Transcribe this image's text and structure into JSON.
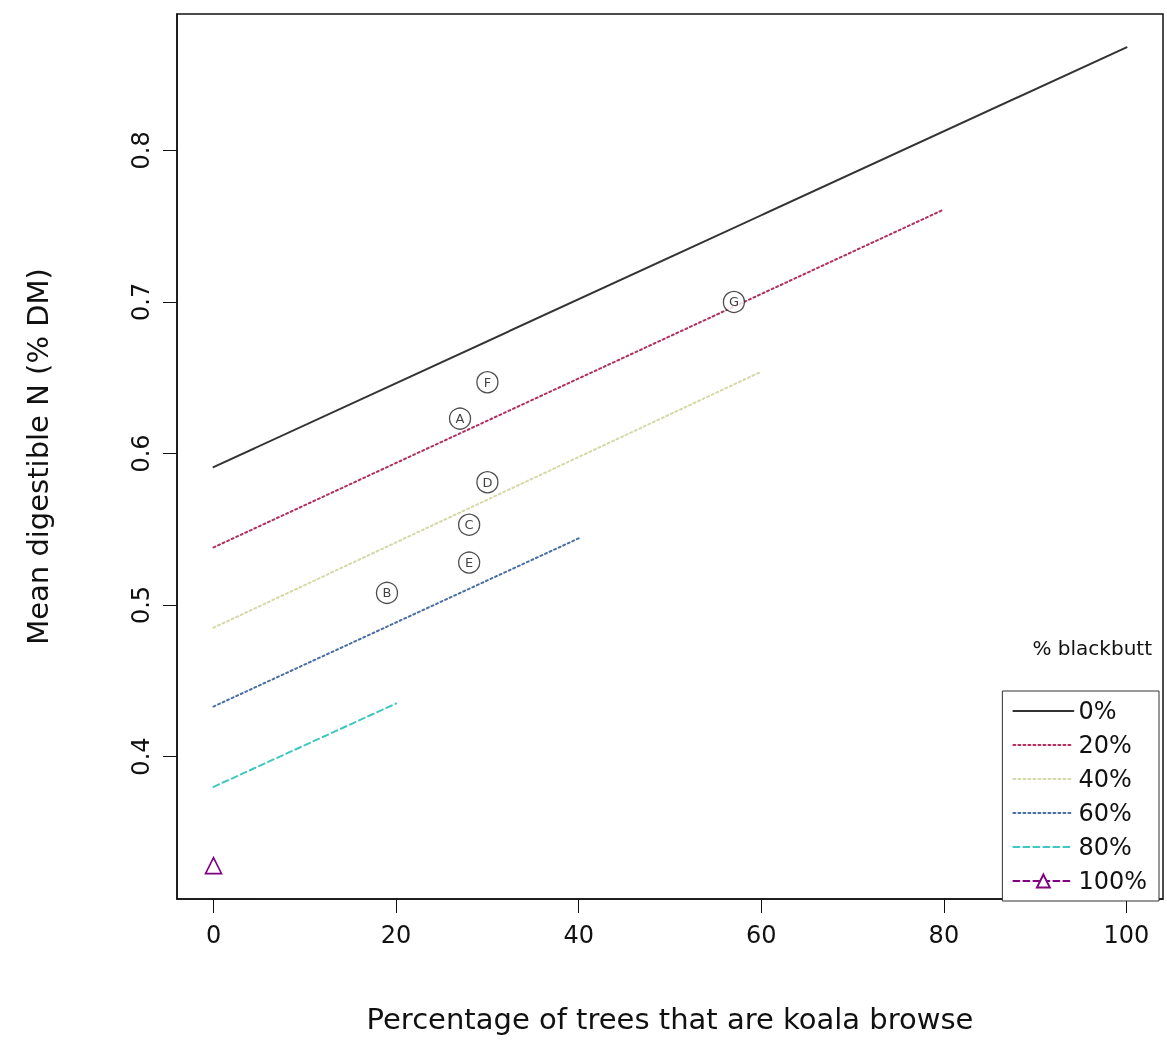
{
  "chart_data": {
    "type": "line",
    "xlabel": "Percentage of trees that are koala browse",
    "ylabel": "Mean digestible N (% DM)",
    "legend_title": "% blackbutt",
    "xlim": [
      -4,
      104
    ],
    "xticks": [
      0,
      20,
      40,
      60,
      80,
      100
    ],
    "ylim": [
      0.306,
      0.89
    ],
    "yticks": [
      0.4,
      0.5,
      0.6,
      0.7,
      0.8
    ],
    "grid": false,
    "legend": "bottom right",
    "marker": "none",
    "series": [
      {
        "name": "0%",
        "color": "#333333",
        "line_style": "solid",
        "x": [
          0,
          100
        ],
        "values": [
          0.591,
          0.868
        ]
      },
      {
        "name": "20%",
        "color": "#b03060",
        "line_style": "dotted",
        "x": [
          0,
          80
        ],
        "values": [
          0.538,
          0.761
        ]
      },
      {
        "name": "40%",
        "color": "#d6d8a8",
        "line_style": "dotted",
        "x": [
          0,
          60
        ],
        "values": [
          0.485,
          0.654
        ]
      },
      {
        "name": "60%",
        "color": "#4a6fa5",
        "line_style": "dotted",
        "x": [
          0,
          40
        ],
        "values": [
          0.433,
          0.544
        ]
      },
      {
        "name": "80%",
        "color": "#40c8c0",
        "line_style": "dashed",
        "x": [
          0,
          20
        ],
        "values": [
          0.38,
          0.435
        ]
      },
      {
        "name": "100%",
        "color": "#800080",
        "line_style": "dashed",
        "marker": "triangle",
        "x": [
          0
        ],
        "values": [
          0.328
        ]
      }
    ],
    "annotations": [
      {
        "text": "A",
        "x": 27,
        "y": 0.623
      },
      {
        "text": "B",
        "x": 19,
        "y": 0.508
      },
      {
        "text": "C",
        "x": 28,
        "y": 0.553
      },
      {
        "text": "D",
        "x": 30,
        "y": 0.581
      },
      {
        "text": "E",
        "x": 28,
        "y": 0.528
      },
      {
        "text": "F",
        "x": 30,
        "y": 0.647
      },
      {
        "text": "G",
        "x": 57,
        "y": 0.7
      }
    ]
  }
}
